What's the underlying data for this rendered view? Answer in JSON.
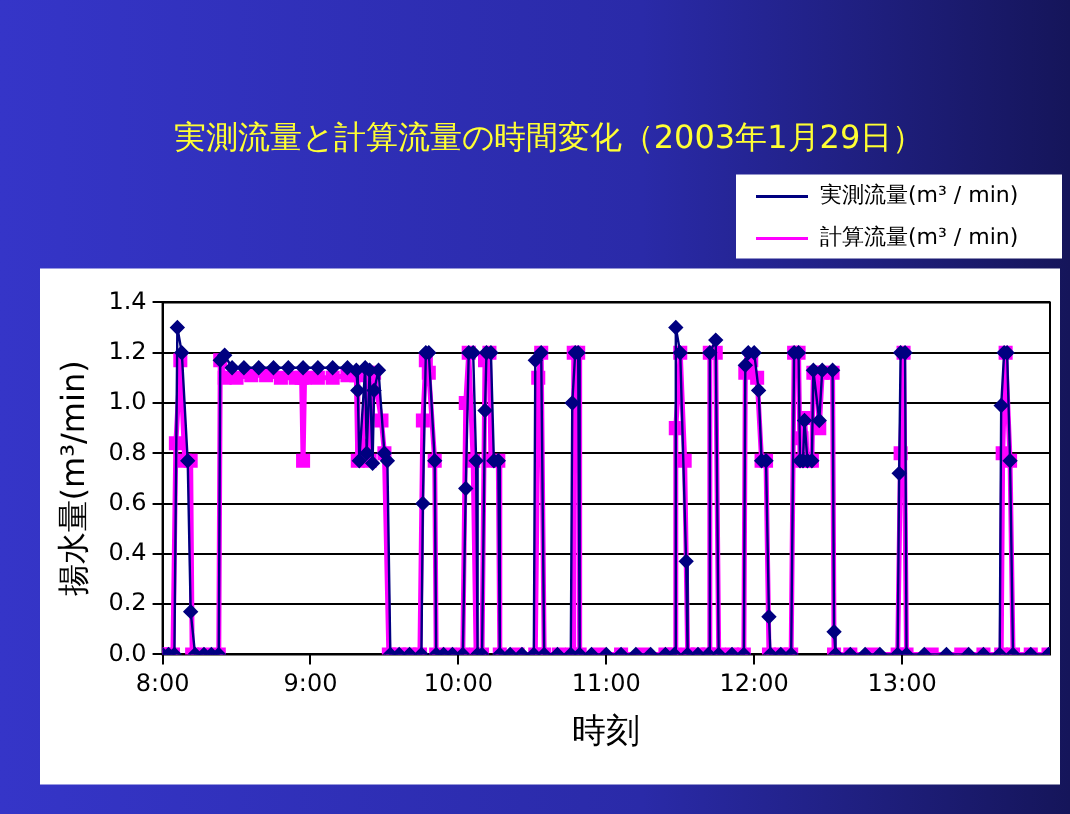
{
  "chart_data": {
    "type": "line",
    "title": "実測流量と計算流量の時間変化（2003年1月29日）",
    "xlabel": "時刻",
    "ylabel": "揚水量(m³/min)",
    "xlim": [
      8,
      14
    ],
    "xticks": [
      {
        "value": 8,
        "label": "8:00"
      },
      {
        "value": 9,
        "label": "9:00"
      },
      {
        "value": 10,
        "label": "10:00"
      },
      {
        "value": 11,
        "label": "11:00"
      },
      {
        "value": 12,
        "label": "12:00"
      },
      {
        "value": 13,
        "label": "13:00"
      }
    ],
    "ylim": [
      0,
      1.4
    ],
    "yticks": [
      {
        "value": 0,
        "label": "0.0"
      },
      {
        "value": 0.2,
        "label": "0.2"
      },
      {
        "value": 0.4,
        "label": "0.4"
      },
      {
        "value": 0.6,
        "label": "0.6"
      },
      {
        "value": 0.8,
        "label": "0.8"
      },
      {
        "value": 1,
        "label": "1.0"
      },
      {
        "value": 1.2,
        "label": "1.2"
      },
      {
        "value": 1.4,
        "label": "1.4"
      }
    ],
    "grid": "y",
    "legend": "top right",
    "series": [
      {
        "name": "実測流量(m³ / min)",
        "color": "#000080",
        "marker": "diamond",
        "x": [
          8.0,
          8.04,
          8.08,
          8.1,
          8.13,
          8.17,
          8.19,
          8.22,
          8.28,
          8.33,
          8.38,
          8.39,
          8.42,
          8.47,
          8.55,
          8.65,
          8.75,
          8.85,
          8.95,
          9.05,
          9.15,
          9.25,
          9.31,
          9.32,
          9.33,
          9.37,
          9.38,
          9.4,
          9.42,
          9.43,
          9.46,
          9.5,
          9.52,
          9.54,
          9.6,
          9.67,
          9.75,
          9.76,
          9.78,
          9.8,
          9.84,
          9.85,
          9.9,
          9.96,
          10.03,
          10.05,
          10.07,
          10.1,
          10.12,
          10.13,
          10.16,
          10.18,
          10.19,
          10.22,
          10.24,
          10.27,
          10.28,
          10.35,
          10.43,
          10.51,
          10.52,
          10.56,
          10.58,
          10.67,
          10.76,
          10.77,
          10.79,
          10.81,
          10.82,
          10.9,
          11.0,
          11.1,
          11.2,
          11.3,
          11.4,
          11.46,
          11.47,
          11.5,
          11.54,
          11.55,
          11.62,
          11.69,
          11.7,
          11.74,
          11.76,
          11.85,
          11.93,
          11.94,
          11.96,
          12.0,
          12.03,
          12.05,
          12.08,
          12.1,
          12.11,
          12.18,
          12.25,
          12.27,
          12.3,
          12.31,
          12.33,
          12.34,
          12.36,
          12.39,
          12.4,
          12.44,
          12.46,
          12.53,
          12.54,
          12.55,
          12.65,
          12.75,
          12.85,
          12.97,
          12.98,
          12.99,
          13.02,
          13.03,
          13.15,
          13.3,
          13.45,
          13.55,
          13.66,
          13.67,
          13.69,
          13.71,
          13.73,
          13.75,
          13.87,
          13.99
        ],
        "values": [
          0,
          0,
          0,
          1.3,
          1.2,
          0.77,
          0.17,
          0,
          0,
          0,
          0,
          1.17,
          1.19,
          1.14,
          1.14,
          1.14,
          1.14,
          1.14,
          1.14,
          1.14,
          1.14,
          1.14,
          1.13,
          1.05,
          0.77,
          1.14,
          0.8,
          1.13,
          0.76,
          1.05,
          1.13,
          0.8,
          0.77,
          0,
          0,
          0,
          0,
          0.6,
          1.2,
          1.2,
          0.77,
          0,
          0,
          0,
          0,
          0.66,
          1.2,
          1.2,
          0.77,
          0,
          0,
          0.97,
          1.2,
          1.2,
          0.77,
          0.77,
          0,
          0,
          0,
          0,
          1.17,
          1.2,
          0,
          0,
          0,
          1.0,
          1.2,
          1.2,
          0,
          0,
          0,
          0,
          0,
          0,
          0,
          0,
          1.3,
          1.2,
          0.37,
          0,
          0,
          0,
          1.2,
          1.25,
          0,
          0,
          0,
          1.15,
          1.2,
          1.2,
          1.05,
          0.77,
          0.77,
          0.15,
          0,
          0,
          0,
          1.2,
          1.2,
          0.77,
          0.77,
          0.93,
          0.77,
          0.77,
          1.13,
          0.93,
          1.13,
          1.13,
          0.09,
          0,
          0,
          0,
          0,
          0,
          0.72,
          1.2,
          1.2,
          0,
          0,
          0,
          0,
          0,
          0,
          0.99,
          1.2,
          1.2,
          0.77,
          0,
          0,
          0
        ]
      },
      {
        "name": "計算流量(m³ / min)",
        "color": "#ff00ff",
        "marker": "square",
        "x": [
          8.0,
          8.04,
          8.07,
          8.09,
          8.12,
          8.15,
          8.19,
          8.2,
          8.28,
          8.38,
          8.39,
          8.42,
          8.5,
          8.6,
          8.7,
          8.8,
          8.9,
          8.94,
          8.95,
          8.96,
          9.05,
          9.15,
          9.25,
          9.31,
          9.32,
          9.35,
          9.38,
          9.4,
          9.43,
          9.48,
          9.5,
          9.53,
          9.6,
          9.67,
          9.74,
          9.76,
          9.78,
          9.8,
          9.84,
          9.85,
          9.94,
          10.03,
          10.05,
          10.07,
          10.1,
          10.12,
          10.16,
          10.18,
          10.21,
          10.22,
          10.27,
          10.28,
          10.4,
          10.52,
          10.54,
          10.56,
          10.58,
          10.68,
          10.77,
          10.78,
          10.81,
          10.82,
          10.95,
          11.1,
          11.25,
          11.4,
          11.46,
          11.47,
          11.5,
          11.53,
          11.55,
          11.62,
          11.69,
          11.7,
          11.74,
          11.76,
          11.85,
          11.93,
          11.94,
          11.98,
          12.02,
          12.05,
          12.08,
          12.1,
          12.18,
          12.25,
          12.27,
          12.3,
          12.31,
          12.32,
          12.34,
          12.36,
          12.39,
          12.4,
          12.42,
          12.44,
          12.46,
          12.53,
          12.54,
          12.65,
          12.8,
          12.97,
          12.99,
          13.01,
          13.03,
          13.2,
          13.4,
          13.55,
          13.67,
          13.68,
          13.7,
          13.73,
          13.75,
          13.87,
          13.99
        ],
        "values": [
          0,
          0,
          0,
          0.84,
          1.17,
          0.77,
          0.77,
          0,
          0,
          0,
          1.17,
          1.1,
          1.1,
          1.11,
          1.11,
          1.1,
          1.1,
          1.1,
          0.77,
          1.1,
          1.1,
          1.1,
          1.11,
          1.11,
          0.77,
          0.83,
          1.12,
          0.77,
          1.12,
          0.93,
          0.8,
          0,
          0,
          0,
          0,
          0.93,
          1.17,
          1.12,
          0.77,
          0,
          0,
          0,
          1.0,
          1.2,
          0.77,
          0,
          0,
          1.17,
          1.2,
          0.77,
          0.77,
          0,
          0,
          0,
          1.1,
          1.2,
          0,
          0,
          0,
          1.2,
          1.2,
          0,
          0,
          0,
          0,
          0,
          0,
          0.9,
          1.2,
          0.77,
          0,
          0,
          0,
          1.2,
          1.2,
          0,
          0,
          0,
          1.12,
          1.17,
          1.1,
          0.77,
          0.77,
          0,
          0,
          0,
          1.2,
          1.2,
          0.77,
          0.86,
          0.94,
          0.77,
          0.77,
          1.12,
          1.12,
          0.9,
          1.12,
          1.12,
          0,
          0,
          0,
          0,
          0.8,
          1.2,
          0,
          0,
          0,
          0,
          0,
          0.8,
          1.2,
          0.77,
          0,
          0,
          0
        ]
      }
    ]
  }
}
